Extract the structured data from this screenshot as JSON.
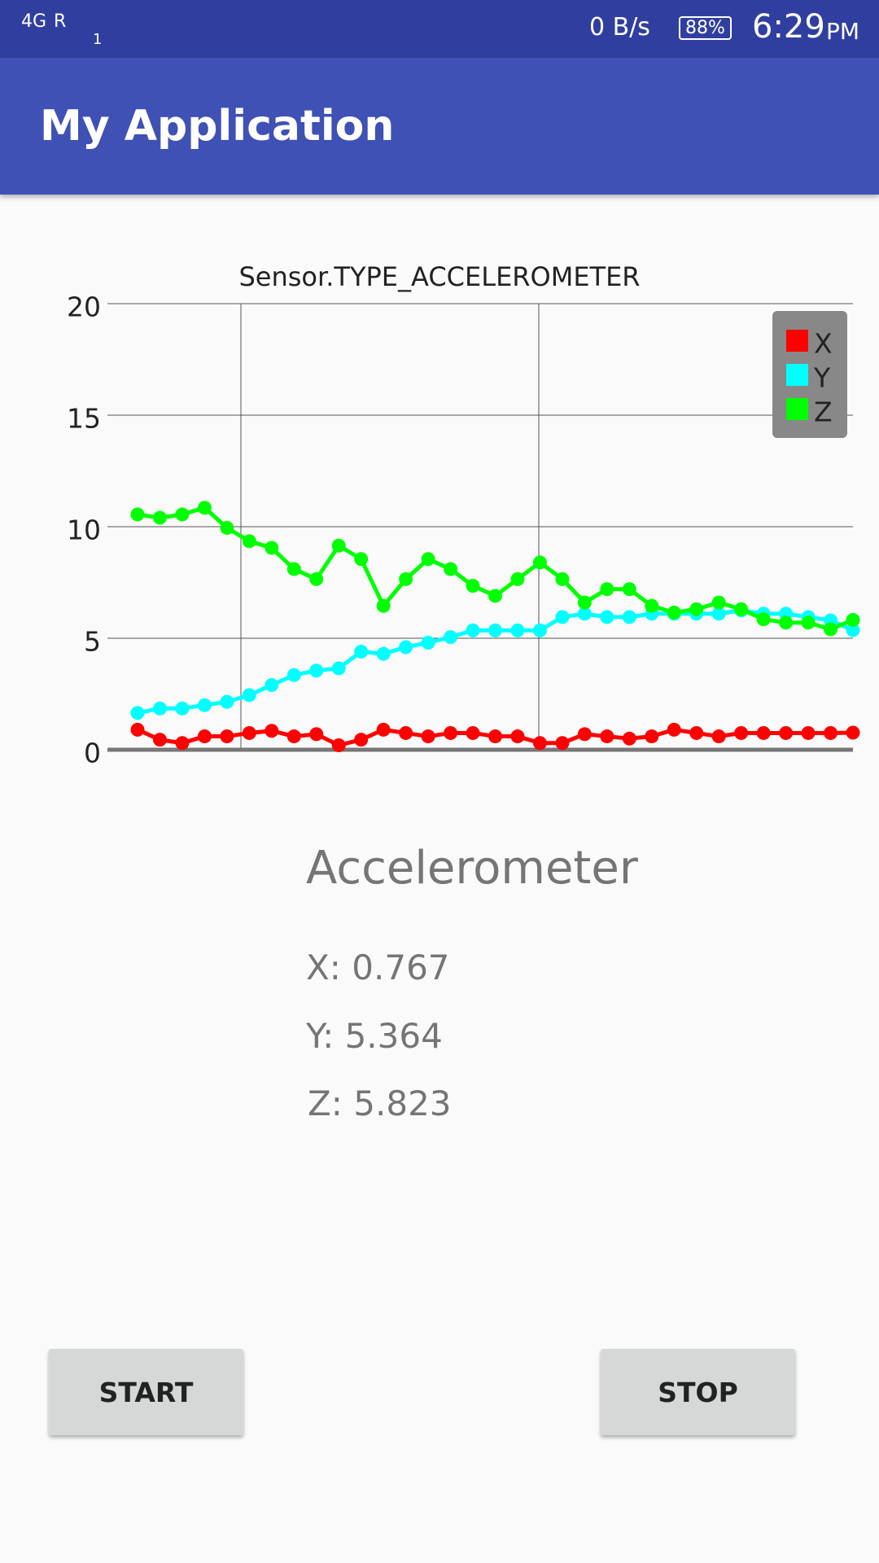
{
  "status_bar": {
    "network": "4G",
    "roaming": "R",
    "sim": "1",
    "speed": "0 B/s",
    "battery": "88%",
    "time": "6:29",
    "period": "PM"
  },
  "app_bar": {
    "title": "My Application"
  },
  "chart_data": {
    "type": "line",
    "title": "Sensor.TYPE_ACCELEROMETER",
    "categories": [
      null,
      null,
      null,
      null,
      null,
      null,
      null,
      null,
      null,
      null,
      null,
      null,
      null,
      null,
      null,
      null,
      null,
      null,
      null,
      null,
      null,
      null,
      null,
      null,
      null,
      null,
      null,
      null,
      null,
      null,
      null,
      null,
      null
    ],
    "series": [
      {
        "name": "X",
        "color": "#ff0000",
        "values": [
          0.9,
          0.45,
          0.3,
          0.6,
          0.6,
          0.75,
          0.85,
          0.6,
          0.7,
          0.2,
          0.45,
          0.9,
          0.75,
          0.6,
          0.75,
          0.75,
          0.6,
          0.6,
          0.3,
          0.3,
          0.7,
          0.6,
          0.5,
          0.6,
          0.9,
          0.75,
          0.6,
          0.75,
          0.75,
          0.75,
          0.75,
          0.75,
          0.767
        ]
      },
      {
        "name": "Y",
        "color": "#00ffff",
        "values": [
          1.65,
          1.85,
          1.85,
          2.0,
          2.15,
          2.45,
          2.9,
          3.35,
          3.55,
          3.65,
          4.4,
          4.3,
          4.6,
          4.8,
          5.05,
          5.35,
          5.35,
          5.35,
          5.35,
          5.95,
          6.1,
          5.95,
          5.95,
          6.1,
          6.1,
          6.1,
          6.1,
          6.25,
          6.1,
          6.1,
          5.95,
          5.8,
          5.364
        ]
      },
      {
        "name": "Z",
        "color": "#00ff00",
        "values": [
          10.55,
          10.4,
          10.55,
          10.85,
          9.95,
          9.35,
          9.05,
          8.1,
          7.65,
          9.15,
          8.55,
          6.45,
          7.65,
          8.55,
          8.1,
          7.35,
          6.9,
          7.65,
          8.4,
          7.65,
          6.6,
          7.2,
          7.2,
          6.45,
          6.15,
          6.3,
          6.6,
          6.3,
          5.85,
          5.7,
          5.7,
          5.4,
          5.823
        ]
      }
    ],
    "ylim": [
      0,
      20
    ],
    "yticks": [
      0,
      5,
      10,
      15,
      20
    ],
    "grid": true,
    "legend": "top-right"
  },
  "readings": {
    "heading": "Accelerometer",
    "x": "X: 0.767",
    "y": "Y: 5.364",
    "z": "Z: 5.823"
  },
  "buttons": {
    "start": "START",
    "stop": "STOP"
  }
}
